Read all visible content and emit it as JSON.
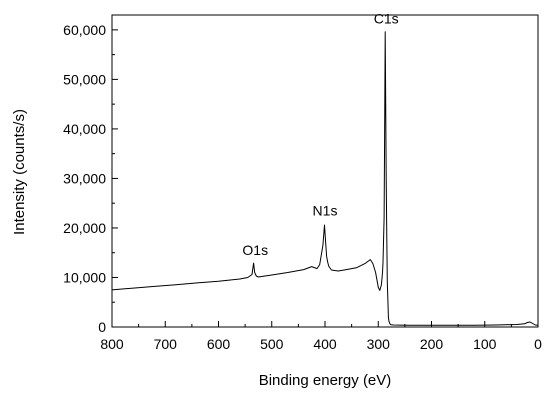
{
  "chart_data": {
    "type": "line",
    "title": "",
    "xlabel": "Binding energy (eV)",
    "ylabel": "Intensity (counts/s)",
    "xlim": [
      800,
      0
    ],
    "ylim": [
      0,
      63000
    ],
    "x_reversed": true,
    "grid": false,
    "x_ticks": [
      800,
      700,
      600,
      500,
      400,
      300,
      200,
      100,
      0
    ],
    "x_tick_labels": [
      "800",
      "700",
      "600",
      "500",
      "400",
      "300",
      "200",
      "100",
      "0"
    ],
    "y_ticks": [
      0,
      10000,
      20000,
      30000,
      40000,
      50000,
      60000
    ],
    "y_tick_labels": [
      "0",
      "10,000",
      "20,000",
      "30,000",
      "40,000",
      "50,000",
      "60,000"
    ],
    "series": [
      {
        "color": "#000000",
        "x": [
          800,
          760,
          720,
          680,
          640,
          600,
          560,
          545,
          537,
          534,
          532,
          529,
          525,
          500,
          470,
          440,
          425,
          415,
          410,
          404,
          401,
          399,
          397,
          395,
          393,
          388,
          375,
          360,
          340,
          325,
          315,
          310,
          305,
          300,
          297,
          294,
          292,
          291,
          289,
          288,
          287,
          286,
          285,
          284,
          283,
          282,
          281,
          280,
          278,
          276,
          272,
          260,
          240,
          220,
          200,
          160,
          120,
          80,
          40,
          25,
          20,
          15,
          10,
          5,
          0
        ],
        "y": [
          7500,
          7850,
          8200,
          8550,
          8900,
          9250,
          9700,
          10000,
          10600,
          12900,
          11000,
          10300,
          10100,
          10500,
          11000,
          11600,
          12200,
          11800,
          12600,
          16500,
          20600,
          17500,
          14300,
          13100,
          12300,
          11500,
          11300,
          11600,
          12000,
          12800,
          13600,
          12800,
          11000,
          8000,
          7400,
          8500,
          11000,
          13000,
          22000,
          38000,
          59600,
          45000,
          30000,
          18000,
          9000,
          6000,
          2000,
          1200,
          600,
          450,
          400,
          380,
          370,
          360,
          350,
          350,
          370,
          400,
          500,
          650,
          900,
          1000,
          700,
          400,
          350
        ]
      }
    ],
    "annotations": [
      {
        "text": "O1s",
        "x": 531,
        "y": 13300
      },
      {
        "text": "N1s",
        "x": 400,
        "y": 21300
      },
      {
        "text": "C1s",
        "x": 285,
        "y": 60100
      }
    ]
  }
}
